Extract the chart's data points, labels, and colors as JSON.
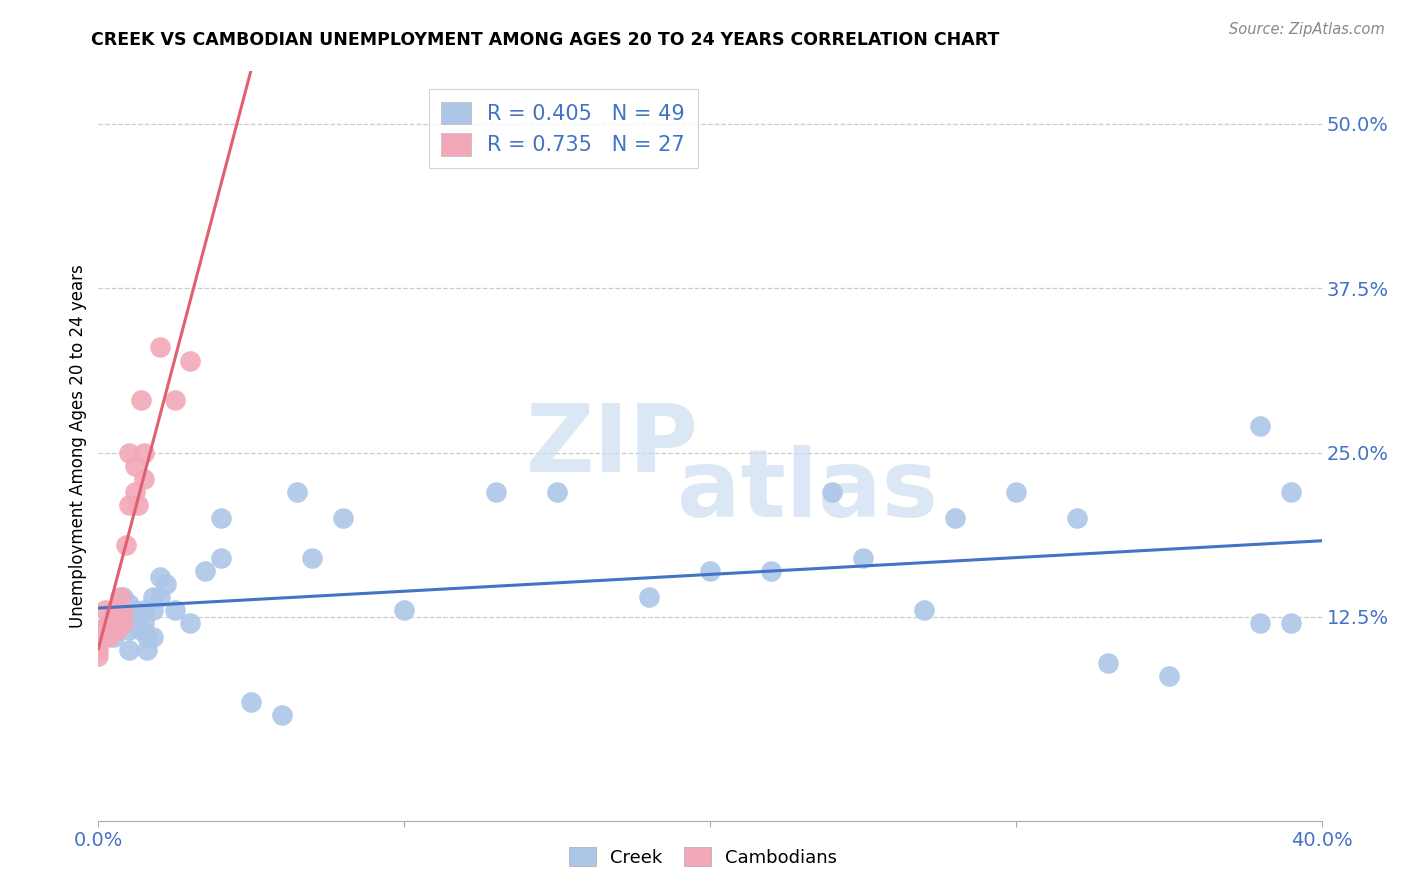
{
  "title": "CREEK VS CAMBODIAN UNEMPLOYMENT AMONG AGES 20 TO 24 YEARS CORRELATION CHART",
  "source": "Source: ZipAtlas.com",
  "ylabel": "Unemployment Among Ages 20 to 24 years",
  "xlim": [
    0.0,
    0.4
  ],
  "ylim": [
    -0.03,
    0.54
  ],
  "ytick_positions": [
    0.125,
    0.25,
    0.375,
    0.5
  ],
  "ytick_labels": [
    "12.5%",
    "25.0%",
    "37.5%",
    "50.0%"
  ],
  "creek_R": 0.405,
  "creek_N": 49,
  "cambodian_R": 0.735,
  "cambodian_N": 27,
  "creek_color": "#adc6e8",
  "cambodian_color": "#f2a8b8",
  "creek_line_color": "#4472c4",
  "cambodian_line_color": "#e06070",
  "legend_text_color": "#4472c4",
  "creek_x": [
    0.005,
    0.005,
    0.005,
    0.008,
    0.01,
    0.01,
    0.01,
    0.01,
    0.012,
    0.012,
    0.014,
    0.015,
    0.015,
    0.016,
    0.016,
    0.018,
    0.018,
    0.018,
    0.02,
    0.02,
    0.022,
    0.025,
    0.03,
    0.035,
    0.04,
    0.04,
    0.05,
    0.06,
    0.065,
    0.07,
    0.08,
    0.1,
    0.13,
    0.15,
    0.18,
    0.2,
    0.22,
    0.24,
    0.25,
    0.27,
    0.28,
    0.3,
    0.32,
    0.33,
    0.35,
    0.38,
    0.38,
    0.39,
    0.39
  ],
  "creek_y": [
    0.13,
    0.12,
    0.11,
    0.14,
    0.135,
    0.125,
    0.115,
    0.1,
    0.13,
    0.12,
    0.115,
    0.13,
    0.12,
    0.11,
    0.1,
    0.14,
    0.13,
    0.11,
    0.155,
    0.14,
    0.15,
    0.13,
    0.12,
    0.16,
    0.2,
    0.17,
    0.06,
    0.05,
    0.22,
    0.17,
    0.2,
    0.13,
    0.22,
    0.22,
    0.14,
    0.16,
    0.16,
    0.22,
    0.17,
    0.13,
    0.2,
    0.22,
    0.2,
    0.09,
    0.08,
    0.27,
    0.12,
    0.22,
    0.12
  ],
  "cambodian_x": [
    0.0,
    0.0,
    0.0,
    0.0,
    0.0,
    0.001,
    0.002,
    0.003,
    0.003,
    0.004,
    0.005,
    0.006,
    0.007,
    0.008,
    0.008,
    0.009,
    0.01,
    0.01,
    0.012,
    0.012,
    0.013,
    0.014,
    0.015,
    0.015,
    0.02,
    0.025,
    0.03
  ],
  "cambodian_y": [
    0.11,
    0.115,
    0.105,
    0.1,
    0.095,
    0.115,
    0.13,
    0.12,
    0.11,
    0.115,
    0.13,
    0.115,
    0.14,
    0.13,
    0.12,
    0.18,
    0.21,
    0.25,
    0.24,
    0.22,
    0.21,
    0.29,
    0.25,
    0.23,
    0.33,
    0.29,
    0.32
  ]
}
